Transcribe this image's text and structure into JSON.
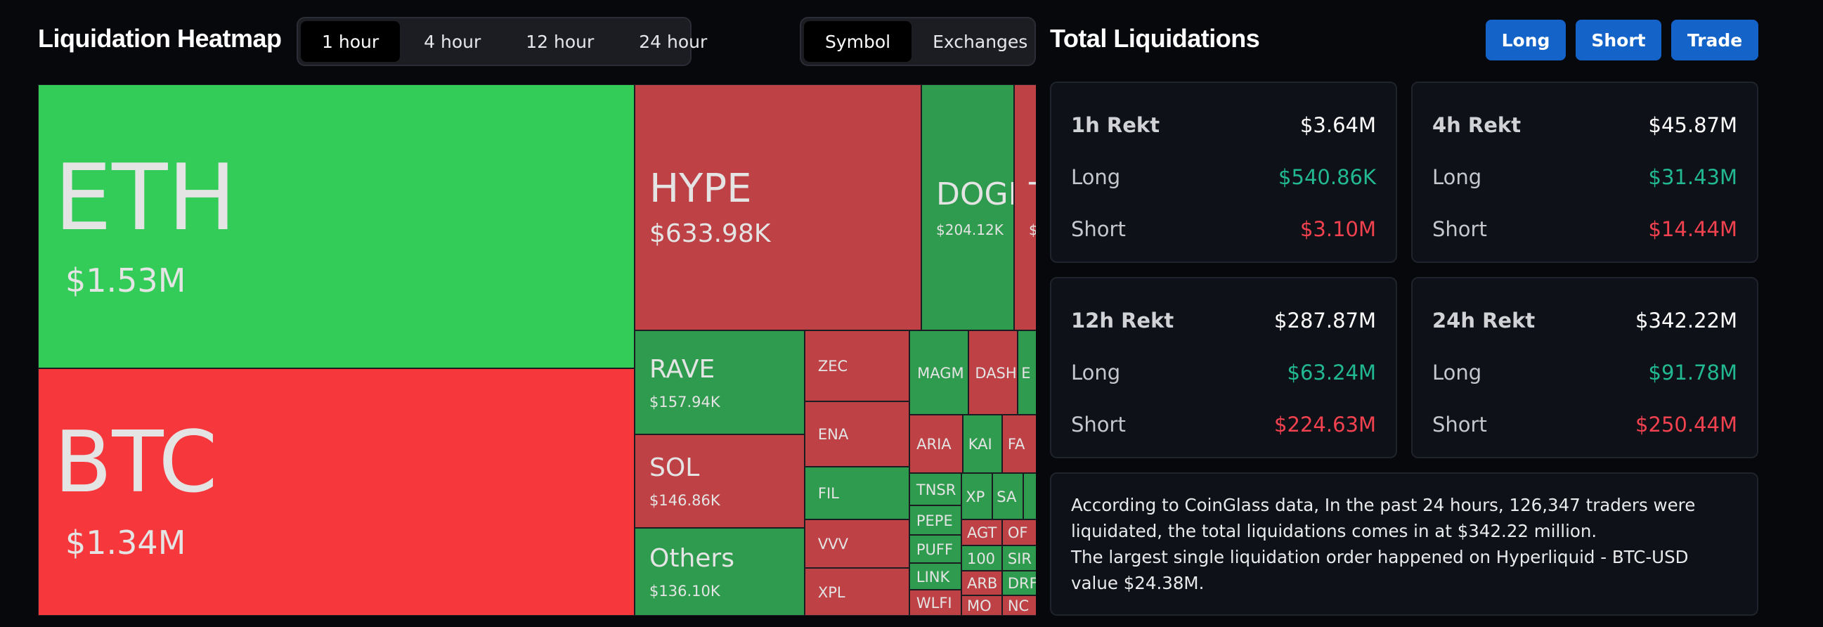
{
  "heatmap": {
    "title": "Liquidation Heatmap",
    "timeframes": [
      "1 hour",
      "4 hour",
      "12 hour",
      "24 hour"
    ],
    "active_timeframe": "1 hour",
    "views": [
      "Symbol",
      "Exchanges"
    ],
    "active_view": "Symbol",
    "colors": {
      "long_green": "#33cc59",
      "dark_green": "#2f9b4e",
      "short_red": "#f6383c",
      "dark_red": "#bd4145"
    },
    "tiles": [
      {
        "id": "eth",
        "symbol": "ETH",
        "value": "$1.53M",
        "color": "long_green"
      },
      {
        "id": "btc",
        "symbol": "BTC",
        "value": "$1.34M",
        "color": "short_red"
      },
      {
        "id": "hype",
        "symbol": "HYPE",
        "value": "$633.98K",
        "color": "dark_red"
      },
      {
        "id": "doge",
        "symbol": "DOGE",
        "value": "$204.12K",
        "color": "dark_green"
      },
      {
        "id": "t",
        "symbol": "T",
        "value": "$",
        "color": "dark_red"
      },
      {
        "id": "rave",
        "symbol": "RAVE",
        "value": "$157.94K",
        "color": "dark_green"
      },
      {
        "id": "sol",
        "symbol": "SOL",
        "value": "$146.86K",
        "color": "dark_red"
      },
      {
        "id": "others",
        "symbol": "Others",
        "value": "$136.10K",
        "color": "dark_green"
      },
      {
        "id": "zec",
        "symbol": "ZEC",
        "color": "dark_red"
      },
      {
        "id": "ena",
        "symbol": "ENA",
        "color": "dark_red"
      },
      {
        "id": "fil",
        "symbol": "FIL",
        "color": "dark_green"
      },
      {
        "id": "vvv",
        "symbol": "VVV",
        "color": "dark_red"
      },
      {
        "id": "xpl",
        "symbol": "XPL",
        "color": "dark_red"
      },
      {
        "id": "magm",
        "symbol": "MAGM",
        "color": "dark_green"
      },
      {
        "id": "dash",
        "symbol": "DASH",
        "color": "dark_red"
      },
      {
        "id": "e",
        "symbol": "E",
        "color": "dark_green"
      },
      {
        "id": "aria",
        "symbol": "ARIA",
        "color": "dark_red"
      },
      {
        "id": "kai",
        "symbol": "KAI",
        "color": "dark_green"
      },
      {
        "id": "fa",
        "symbol": "FA",
        "color": "dark_red"
      },
      {
        "id": "tnsr",
        "symbol": "TNSR",
        "color": "dark_green"
      },
      {
        "id": "xp",
        "symbol": "XP",
        "color": "dark_green"
      },
      {
        "id": "sa",
        "symbol": "SA",
        "color": "dark_green"
      },
      {
        "id": "g1",
        "symbol": "",
        "color": "dark_green"
      },
      {
        "id": "pepe",
        "symbol": "PEPE",
        "color": "dark_green"
      },
      {
        "id": "agt",
        "symbol": "AGT",
        "color": "dark_red"
      },
      {
        "id": "of",
        "symbol": "OF",
        "color": "dark_red"
      },
      {
        "id": "puff",
        "symbol": "PUFF",
        "color": "dark_green"
      },
      {
        "id": "n100",
        "symbol": "100",
        "color": "dark_green"
      },
      {
        "id": "sir",
        "symbol": "SIR",
        "color": "dark_green"
      },
      {
        "id": "link",
        "symbol": "LINK",
        "color": "dark_green"
      },
      {
        "id": "arb",
        "symbol": "ARB",
        "color": "dark_red"
      },
      {
        "id": "drf",
        "symbol": "DRF",
        "color": "dark_green"
      },
      {
        "id": "wlfi",
        "symbol": "WLFI",
        "color": "dark_red"
      },
      {
        "id": "mo",
        "symbol": "MO",
        "color": "dark_red"
      },
      {
        "id": "nc",
        "symbol": "NC",
        "color": "dark_red"
      }
    ]
  },
  "totals": {
    "title": "Total Liquidations",
    "buttons": [
      "Long",
      "Short",
      "Trade"
    ],
    "cards": [
      {
        "label": "1h Rekt",
        "total": "$3.64M",
        "long_label": "Long",
        "long": "$540.86K",
        "short_label": "Short",
        "short": "$3.10M"
      },
      {
        "label": "4h Rekt",
        "total": "$45.87M",
        "long_label": "Long",
        "long": "$31.43M",
        "short_label": "Short",
        "short": "$14.44M"
      },
      {
        "label": "12h Rekt",
        "total": "$287.87M",
        "long_label": "Long",
        "long": "$63.24M",
        "short_label": "Short",
        "short": "$224.63M"
      },
      {
        "label": "24h Rekt",
        "total": "$342.22M",
        "long_label": "Long",
        "long": "$91.78M",
        "short_label": "Short",
        "short": "$250.44M"
      }
    ],
    "summary_line1": "According to CoinGlass data, In the past 24 hours, 126,347 traders were liquidated, the total liquidations comes in at $342.22 million.",
    "summary_line2": "The largest single liquidation order happened on Hyperliquid - BTC-USD value $24.38M."
  }
}
